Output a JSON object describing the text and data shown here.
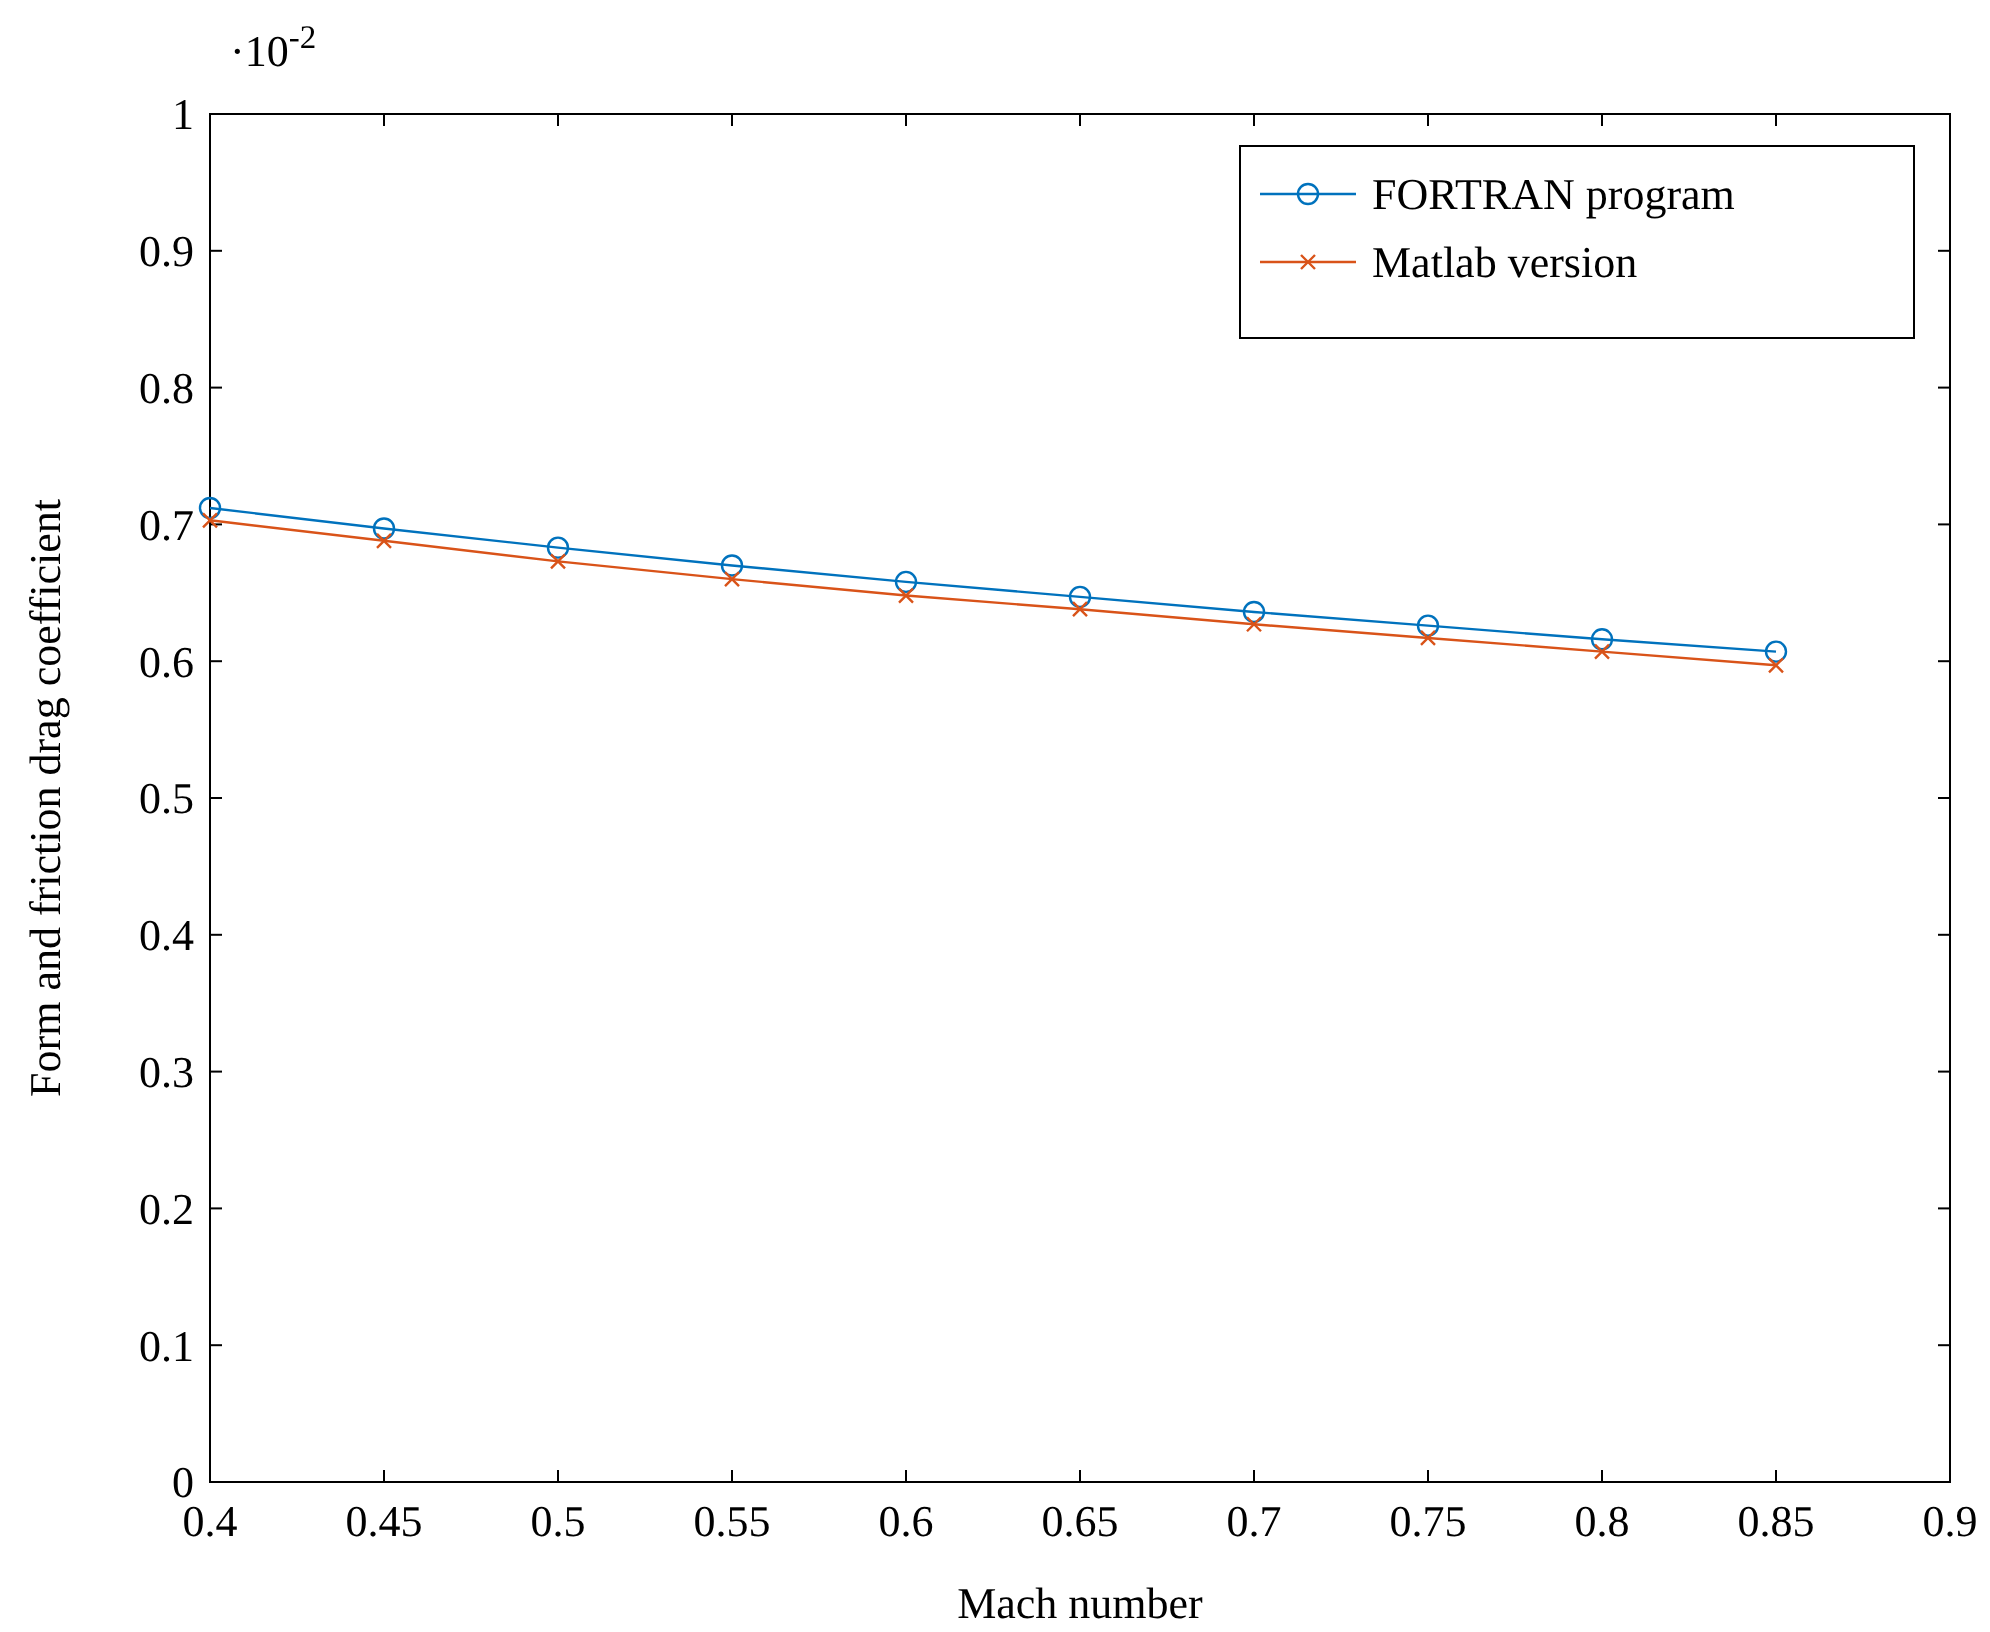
{
  "chart_data": {
    "type": "line",
    "xlabel": "Mach number",
    "ylabel": "Form and friction drag coefficient",
    "annotations": [
      "·10$^{-2}$"
    ],
    "x": [
      0.4,
      0.45,
      0.5,
      0.55,
      0.6,
      0.65,
      0.7,
      0.75,
      0.8,
      0.85
    ],
    "series": [
      {
        "name": "FORTRAN program",
        "color": "#0072bd",
        "marker": "circle",
        "values": [
          0.712,
          0.697,
          0.683,
          0.67,
          0.658,
          0.647,
          0.636,
          0.626,
          0.616,
          0.607
        ]
      },
      {
        "name": "Matlab version",
        "color": "#d95319",
        "marker": "cross",
        "values": [
          0.703,
          0.688,
          0.673,
          0.66,
          0.648,
          0.638,
          0.627,
          0.617,
          0.607,
          0.597
        ]
      }
    ],
    "xlim": [
      0.4,
      0.9
    ],
    "xticks": [
      0.4,
      0.45,
      0.5,
      0.55,
      0.6,
      0.65,
      0.7,
      0.75,
      0.8,
      0.85,
      0.9
    ],
    "ylim": [
      0,
      1
    ],
    "yticks": [
      0,
      0.1,
      0.2,
      0.3,
      0.4,
      0.5,
      0.6,
      0.7,
      0.8,
      0.9,
      1
    ],
    "grid": false,
    "legend": "top right",
    "line_style": "solid"
  }
}
